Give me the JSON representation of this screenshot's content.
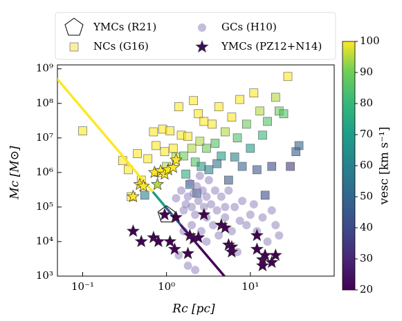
{
  "chart_data": {
    "type": "scatter",
    "xlabel": "Rc [pc]",
    "ylabel": "Mc [M⊙]",
    "log_x": true,
    "log_y": true,
    "xlim": [
      0.05,
      100
    ],
    "ylim": [
      1000,
      1300000000
    ],
    "xticks": [
      {
        "value": 0.1,
        "label": "10⁻¹"
      },
      {
        "value": 1,
        "label": "10⁰"
      },
      {
        "value": 10,
        "label": "10¹"
      }
    ],
    "yticks": [
      {
        "value": 1000,
        "label": "10³"
      },
      {
        "value": 10000,
        "label": "10⁴"
      },
      {
        "value": 100000,
        "label": "10⁵"
      },
      {
        "value": 1000000,
        "label": "10⁶"
      },
      {
        "value": 10000000,
        "label": "10⁷"
      },
      {
        "value": 100000000,
        "label": "10⁸"
      },
      {
        "value": 1000000000,
        "label": "10⁹"
      }
    ],
    "colormap": "viridis",
    "colorbar": {
      "label": "vesc [km s⁻¹]",
      "lim": [
        20,
        100
      ],
      "ticks": [
        20,
        30,
        40,
        50,
        60,
        70,
        80,
        90,
        100
      ]
    },
    "series": [
      {
        "name": "YMCs (R21)",
        "marker": "pentagon",
        "color": "#ffffff",
        "x": [
          1
        ],
        "values": [
          60000
        ]
      },
      {
        "name": "NCs (G16)",
        "marker": "square",
        "color": "#f3e566",
        "x": [
          0.1,
          0.3,
          0.35,
          0.38,
          0.45,
          0.5,
          0.55,
          0.6,
          0.7,
          0.75,
          0.8,
          0.9,
          0.95,
          1.0,
          1.1,
          1.2,
          1.3,
          1.4,
          1.5,
          1.6,
          1.7,
          1.8,
          2.0,
          2.1,
          2.2,
          2.4,
          2.5,
          2.6,
          2.8,
          3.0,
          3.2,
          3.5,
          3.8,
          4.0,
          4.2,
          4.5,
          5,
          5.5,
          6,
          6.5,
          7,
          7.5,
          8,
          9,
          10,
          11,
          12,
          13,
          14,
          15,
          16,
          18,
          20,
          22,
          25,
          28,
          30,
          35,
          38,
          2.3,
          1.9
        ],
        "values": [
          16000000,
          2200000,
          1200000,
          200000,
          3500000,
          600000,
          220000,
          2500000,
          15000000,
          6000000,
          1000000,
          18000000,
          4000000,
          1500000,
          16000000,
          5000000,
          2800000,
          80000000,
          12000000,
          3000000,
          900000,
          11000000,
          5000000,
          120000000,
          2000000,
          50000000,
          8000000,
          1500000,
          30000000,
          5000000,
          1200000,
          25000000,
          7000000,
          1800000,
          80000000,
          3000000,
          15000000,
          600000,
          40000000,
          2800000,
          10000000,
          130000000,
          1500000,
          25000000,
          5000000,
          200000000,
          1200000,
          60000000,
          12000000,
          220000,
          30000000,
          1500000,
          150000000,
          60000000,
          50000000,
          600000000,
          1500000,
          4000000,
          6000000,
          250000,
          450000
        ],
        "c": [
          100,
          100,
          100,
          100,
          100,
          100,
          60,
          100,
          100,
          100,
          100,
          100,
          100,
          95,
          100,
          100,
          95,
          100,
          100,
          90,
          75,
          100,
          95,
          100,
          85,
          100,
          95,
          70,
          100,
          90,
          60,
          100,
          85,
          55,
          100,
          70,
          95,
          45,
          100,
          60,
          85,
          100,
          50,
          90,
          70,
          100,
          45,
          95,
          80,
          40,
          85,
          40,
          95,
          90,
          85,
          100,
          35,
          45,
          50,
          50,
          55
        ]
      },
      {
        "name": "GCs (H10)",
        "marker": "circle",
        "color": "#8c7ab8",
        "x": [
          1.3,
          1.5,
          1.6,
          1.7,
          1.8,
          1.9,
          2,
          2,
          2.1,
          2.2,
          2.3,
          2.4,
          2.5,
          2.6,
          2.7,
          2.8,
          3,
          3,
          3.2,
          3.4,
          3.6,
          3.8,
          4,
          4.2,
          4.5,
          5,
          5,
          5.5,
          6,
          6.5,
          7,
          7.5,
          8,
          9,
          10,
          11,
          12,
          14,
          16,
          18,
          20,
          22,
          1.4,
          1.8,
          2.2,
          3,
          1.6
        ],
        "values": [
          180000,
          300000,
          80000,
          120000,
          200000,
          500000,
          30000,
          100000,
          250000,
          60000,
          400000,
          150000,
          800000,
          20000,
          300000,
          100000,
          50000,
          200000,
          600000,
          120000,
          30000,
          300000,
          80000,
          15000,
          200000,
          50000,
          100000,
          300000,
          20000,
          100000,
          5000,
          40000,
          150000,
          30000,
          60000,
          120000,
          20000,
          50000,
          10000,
          80000,
          30000,
          15000,
          4000,
          2000,
          1500,
          10000,
          20000
        ]
      },
      {
        "name": "YMCs (PZ12+N14)",
        "marker": "star",
        "color": "#3b0f5e",
        "x": [
          0.4,
          0.48,
          0.53,
          0.78,
          0.72,
          0.85,
          0.95,
          1.05,
          1.2,
          1.3,
          0.4,
          0.5,
          0.7,
          0.8,
          0.95,
          1.1,
          1.25,
          1.3,
          1.8,
          1.9,
          2.1,
          2.4,
          2.8,
          4.5,
          5,
          5.5,
          6,
          6,
          12,
          12,
          14,
          14,
          15,
          18,
          20
        ],
        "values": [
          200000,
          450000,
          400000,
          450000,
          1000000,
          1100000,
          900000,
          1200000,
          1400000,
          2300000,
          20000,
          10000,
          13000,
          10000,
          60000,
          10000,
          6000,
          50000,
          4500,
          15000,
          12000,
          13000,
          60000,
          30000,
          25000,
          8000,
          5000,
          7000,
          15000,
          6000,
          3000,
          2000,
          4000,
          2500,
          4000
        ],
        "c": [
          100,
          100,
          100,
          95,
          100,
          100,
          100,
          100,
          100,
          100,
          20,
          20,
          20,
          20,
          20,
          20,
          20,
          20,
          20,
          20,
          20,
          20,
          20,
          20,
          20,
          20,
          20,
          20,
          20,
          20,
          20,
          20,
          20,
          20,
          20
        ]
      }
    ],
    "line": {
      "x": [
        0.05,
        0.3,
        0.5,
        0.7,
        1,
        1.5,
        2.5,
        4.9
      ],
      "values": [
        500000000,
        3000000,
        680000,
        260000,
        93000,
        29000,
        6800,
        1000
      ],
      "c": [
        100,
        100,
        100,
        70,
        45,
        25,
        20,
        20
      ]
    }
  }
}
